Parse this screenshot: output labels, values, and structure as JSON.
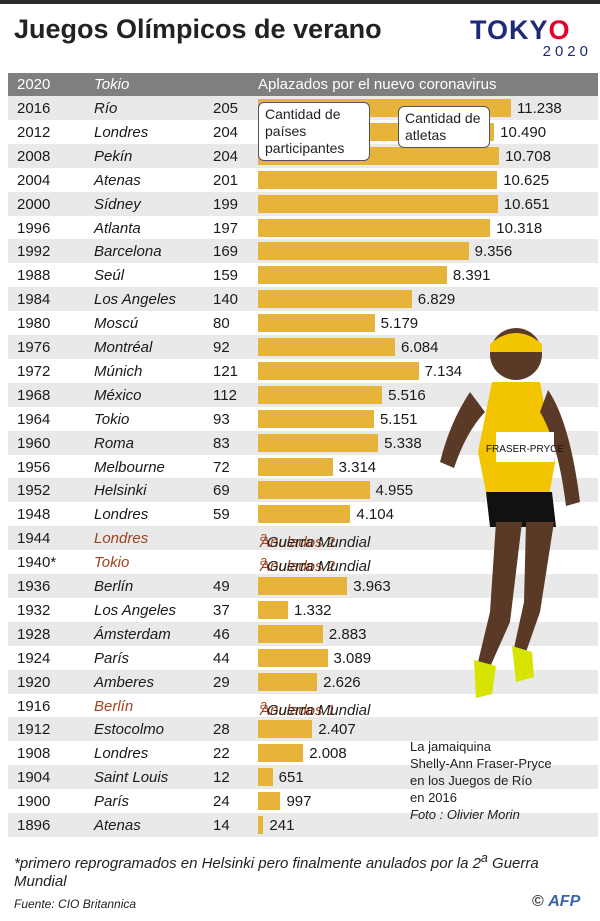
{
  "title": "Juegos Olímpicos de verano",
  "logo": {
    "word_a": "TOKY",
    "word_o": "O",
    "year": "2020"
  },
  "header": {
    "year": "2020",
    "city": "Tokio",
    "note": "Aplazados por el nuevo coronavirus"
  },
  "callouts": {
    "countries": "Cantidad de países participantes",
    "athletes": "Cantidad de atletas"
  },
  "chart_data": {
    "type": "bar",
    "series_names": [
      "Cantidad de países participantes",
      "Cantidad de atletas"
    ],
    "rows": [
      {
        "year": "2016",
        "city": "Río",
        "nations": "205",
        "athletes": 11238,
        "athletes_label": "11.238"
      },
      {
        "year": "2012",
        "city": "Londres",
        "nations": "204",
        "athletes": 10490,
        "athletes_label": "10.490"
      },
      {
        "year": "2008",
        "city": "Pekín",
        "nations": "204",
        "athletes": 10708,
        "athletes_label": "10.708"
      },
      {
        "year": "2004",
        "city": "Atenas",
        "nations": "201",
        "athletes": 10625,
        "athletes_label": "10.625"
      },
      {
        "year": "2000",
        "city": "Sídney",
        "nations": "199",
        "athletes": 10651,
        "athletes_label": "10.651"
      },
      {
        "year": "1996",
        "city": "Atlanta",
        "nations": "197",
        "athletes": 10318,
        "athletes_label": "10.318"
      },
      {
        "year": "1992",
        "city": "Barcelona",
        "nations": "169",
        "athletes": 9356,
        "athletes_label": "9.356"
      },
      {
        "year": "1988",
        "city": "Seúl",
        "nations": "159",
        "athletes": 8391,
        "athletes_label": "8.391"
      },
      {
        "year": "1984",
        "city": "Los Angeles",
        "nations": "140",
        "athletes": 6829,
        "athletes_label": "6.829"
      },
      {
        "year": "1980",
        "city": "Moscú",
        "nations": "80",
        "athletes": 5179,
        "athletes_label": "5.179"
      },
      {
        "year": "1976",
        "city": "Montréal",
        "nations": "92",
        "athletes": 6084,
        "athletes_label": "6.084"
      },
      {
        "year": "1972",
        "city": "Múnich",
        "nations": "121",
        "athletes": 7134,
        "athletes_label": "7.134"
      },
      {
        "year": "1968",
        "city": "México",
        "nations": "112",
        "athletes": 5516,
        "athletes_label": "5.516"
      },
      {
        "year": "1964",
        "city": "Tokio",
        "nations": "93",
        "athletes": 5151,
        "athletes_label": "5.151"
      },
      {
        "year": "1960",
        "city": "Roma",
        "nations": "83",
        "athletes": 5338,
        "athletes_label": "5.338"
      },
      {
        "year": "1956",
        "city": "Melbourne",
        "nations": "72",
        "athletes": 3314,
        "athletes_label": "3.314"
      },
      {
        "year": "1952",
        "city": "Helsinki",
        "nations": "69",
        "athletes": 4955,
        "athletes_label": "4.955"
      },
      {
        "year": "1948",
        "city": "Londres",
        "nations": "59",
        "athletes": 4104,
        "athletes_label": "4.104"
      },
      {
        "year": "1944",
        "city": "Londres",
        "cancelled": true,
        "note_main": "Anulados 2",
        "note_sup": "a",
        "note_suffix": " Guerra Mundial"
      },
      {
        "year": "1940*",
        "city": "Tokio",
        "cancelled": true,
        "note_main": "Anulados 2",
        "note_sup": "a",
        "note_suffix": " Guerra Mundial"
      },
      {
        "year": "1936",
        "city": "Berlín",
        "nations": "49",
        "athletes": 3963,
        "athletes_label": "3.963"
      },
      {
        "year": "1932",
        "city": "Los Angeles",
        "nations": "37",
        "athletes": 1332,
        "athletes_label": "1.332"
      },
      {
        "year": "1928",
        "city": "Ámsterdam",
        "nations": "46",
        "athletes": 2883,
        "athletes_label": "2.883"
      },
      {
        "year": "1924",
        "city": "París",
        "nations": "44",
        "athletes": 3089,
        "athletes_label": "3.089"
      },
      {
        "year": "1920",
        "city": "Amberes",
        "nations": "29",
        "athletes": 2626,
        "athletes_label": "2.626"
      },
      {
        "year": "1916",
        "city": "Berlín",
        "cancelled": true,
        "note_main": "Anulados 1",
        "note_sup": "a",
        "note_suffix": " Guerra Mundial"
      },
      {
        "year": "1912",
        "city": "Estocolmo",
        "nations": "28",
        "athletes": 2407,
        "athletes_label": "2.407"
      },
      {
        "year": "1908",
        "city": "Londres",
        "nations": "22",
        "athletes": 2008,
        "athletes_label": "2.008"
      },
      {
        "year": "1904",
        "city": "Saint Louis",
        "nations": "12",
        "athletes": 651,
        "athletes_label": "651"
      },
      {
        "year": "1900",
        "city": "París",
        "nations": "24",
        "athletes": 997,
        "athletes_label": "997"
      },
      {
        "year": "1896",
        "city": "Atenas",
        "nations": "14",
        "athletes": 241,
        "athletes_label": "241"
      }
    ]
  },
  "photo_caption": {
    "lines": [
      "La jamaiquina",
      "Shelly-Ann Fraser-Pryce",
      "en los Juegos de Río",
      "en 2016"
    ],
    "credit": "Foto : Olivier Morin"
  },
  "bib_text": "FRASER-PRYCE",
  "footnote": {
    "text1": "*primero reprogramados en Helsinki  pero finalmente anulados por la 2",
    "sup": "a",
    "text2": " Guerra Mundial"
  },
  "source": "Fuente: CIO  Britannica",
  "copyright": {
    "symbol": "©",
    "brand": "AFP"
  },
  "colors": {
    "bar": "#e6b33b",
    "header": "#7f7f7f",
    "cancel": "#a0441f",
    "stripe": "#e9e9e9"
  }
}
